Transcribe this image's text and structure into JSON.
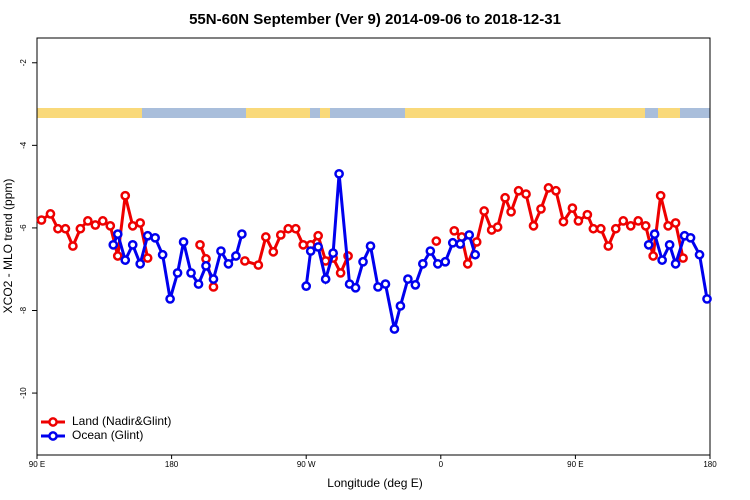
{
  "chart_data": {
    "type": "line",
    "title": "55N-60N September (Ver 9)   2014-09-06 to 2018-12-31",
    "x_label": "Longitude (deg E)",
    "y_label": "XCO2 - MLO trend (ppm)",
    "xlim": [
      90,
      540
    ],
    "xticks": [
      {
        "value": 90,
        "label": "90 E"
      },
      {
        "value": 180,
        "label": "180"
      },
      {
        "value": 270,
        "label": "90 W"
      },
      {
        "value": 360,
        "label": "0"
      },
      {
        "value": 450,
        "label": "90 E"
      },
      {
        "value": 540,
        "label": "180"
      }
    ],
    "ylim": [
      -11.5,
      -1.4
    ],
    "yticks": [
      -10,
      -8,
      -6,
      -4,
      -2
    ],
    "legend": "bottom-left",
    "series": [
      {
        "name": "Land (Nadir&Glint)",
        "color": "#ee0000",
        "x": [
          93,
          99,
          104,
          109,
          114,
          119,
          124,
          129,
          134,
          139,
          144,
          149,
          154,
          159,
          164,
          166,
          199,
          203,
          208,
          210,
          229,
          238,
          243,
          248,
          253,
          258,
          263,
          268,
          273,
          278,
          283,
          288,
          293,
          298,
          300,
          357,
          360,
          369,
          374,
          378,
          384,
          389,
          394,
          398,
          403,
          407,
          412,
          417,
          422,
          427,
          432,
          437,
          442,
          448,
          452,
          458,
          462,
          467,
          472,
          477,
          482,
          487,
          492,
          497,
          502,
          507,
          512,
          517,
          522
        ],
        "values": [
          -5.81,
          -5.66,
          -6.02,
          -6.02,
          -6.44,
          -6.02,
          -5.83,
          -5.93,
          -5.83,
          -5.95,
          -6.68,
          -5.22,
          -5.95,
          -5.88,
          -6.73,
          null,
          -6.41,
          -6.75,
          -7.43,
          null,
          -6.8,
          -6.9,
          -6.22,
          -6.58,
          -6.17,
          -6.02,
          -6.02,
          -6.41,
          -6.41,
          -6.19,
          -6.8,
          -6.73,
          -7.09,
          -6.68,
          null,
          -6.32,
          null,
          -6.07,
          -6.22,
          -6.87,
          -6.34,
          -5.59,
          -6.05,
          -5.98,
          -5.27,
          -5.61,
          -5.1,
          -5.18,
          -5.95,
          -5.54,
          -5.03,
          -5.1,
          -5.85,
          -5.52,
          -5.83,
          -5.68,
          -6.02,
          -6.02,
          -6.44,
          -6.02,
          -5.83,
          -5.95,
          -5.83,
          -5.95,
          -6.68,
          -5.22,
          -5.95,
          -5.88,
          -6.73
        ]
      },
      {
        "name": "Ocean (Glint)",
        "color": "#0000ee",
        "x": [
          141,
          144,
          149,
          154,
          159,
          164,
          169,
          174,
          179,
          184,
          188,
          193,
          198,
          203,
          208,
          213,
          218,
          223,
          227,
          240,
          270,
          273,
          278,
          283,
          288,
          292,
          299,
          303,
          308,
          313,
          318,
          323,
          329,
          333,
          338,
          343,
          348,
          353,
          358,
          363,
          368,
          373,
          379,
          383,
          400,
          499,
          503,
          508,
          513,
          517,
          523,
          527,
          533,
          538
        ],
        "values": [
          -6.41,
          -6.15,
          -6.78,
          -6.41,
          -6.87,
          -6.19,
          -6.24,
          -6.65,
          -7.72,
          -7.09,
          -6.34,
          -7.09,
          -7.36,
          -6.92,
          -7.24,
          -6.56,
          -6.87,
          -6.68,
          -6.15,
          null,
          -7.41,
          -6.56,
          -6.46,
          -7.24,
          -6.61,
          -4.69,
          -7.36,
          -7.45,
          -6.82,
          -6.44,
          -7.43,
          -7.36,
          -8.45,
          -7.89,
          -7.24,
          -7.38,
          -6.87,
          -6.56,
          -6.87,
          -6.82,
          -6.36,
          -6.39,
          -6.17,
          -6.65,
          null,
          -6.41,
          -6.15,
          -6.78,
          -6.41,
          -6.87,
          -6.19,
          -6.24,
          -6.65,
          -7.72
        ]
      }
    ]
  }
}
